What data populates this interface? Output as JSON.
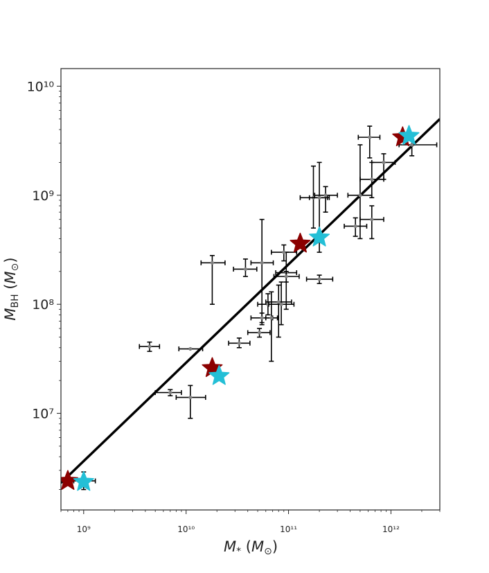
{
  "chart_data": {
    "type": "scatter",
    "title": "",
    "xlabel": "M_* (M_⊙)",
    "ylabel": "M_BH (M_⊙)",
    "x_scale": "log",
    "y_scale": "log",
    "xlim": [
      600000000.0,
      3000000000000.0
    ],
    "ylim": [
      1300000.0,
      14500000000.0
    ],
    "grid": false,
    "legend": "none",
    "x_ticks": [
      {
        "value": 1000000000.0,
        "label": "10⁹"
      },
      {
        "value": 10000000000.0,
        "label": "10¹⁰"
      },
      {
        "value": 100000000000.0,
        "label": "10¹¹"
      },
      {
        "value": 1000000000000.0,
        "label": "10¹²"
      }
    ],
    "y_ticks": [
      {
        "value": 10000000.0,
        "label": "10⁷"
      },
      {
        "value": 100000000.0,
        "label": "10⁸"
      },
      {
        "value": 1000000000.0,
        "label": "10⁹"
      },
      {
        "value": 10000000000.0,
        "label": "10¹⁰"
      }
    ],
    "fit_line": {
      "color": "#000000",
      "points": [
        [
          600000000.0,
          2300000.0
        ],
        [
          3000000000000.0,
          5000000000.0
        ]
      ]
    },
    "series": [
      {
        "marker": "errorbar-point",
        "color": "#808080",
        "errorbar_color": "#000000",
        "points": [
          {
            "x": 4400000000.0,
            "y": 41000000.0,
            "xerr": [
              3500000000.0,
              5500000000.0
            ],
            "yerr": [
              37000000.0,
              45000000.0
            ]
          },
          {
            "x": 11000000000.0,
            "y": 39000000.0,
            "xerr": [
              8500000000.0,
              14500000000.0
            ],
            "yerr": [
              39000000.0,
              39000000.0
            ]
          },
          {
            "x": 7000000000.0,
            "y": 15500000.0,
            "xerr": [
              5000000000.0,
              9000000000.0
            ],
            "yerr": [
              14500000.0,
              16500000.0
            ]
          },
          {
            "x": 11000000000.0,
            "y": 14000000.0,
            "xerr": [
              8000000000.0,
              15500000000.0
            ],
            "yerr": [
              9000000.0,
              18000000.0
            ]
          },
          {
            "x": 18000000000.0,
            "y": 240000000.0,
            "xerr": [
              14000000000.0,
              24000000000.0
            ],
            "yerr": [
              100000000.0,
              280000000.0
            ]
          },
          {
            "x": 38000000000.0,
            "y": 210000000.0,
            "xerr": [
              29000000000.0,
              49000000000.0
            ],
            "yerr": [
              180000000.0,
              260000000.0
            ]
          },
          {
            "x": 55000000000.0,
            "y": 240000000.0,
            "xerr": [
              43000000000.0,
              71000000000.0
            ],
            "yerr": [
              65000000.0,
              600000000.0
            ]
          },
          {
            "x": 33000000000.0,
            "y": 44000000.0,
            "xerr": [
              26000000000.0,
              42000000000.0
            ],
            "yerr": [
              40000000.0,
              49000000.0
            ]
          },
          {
            "x": 52000000000.0,
            "y": 55000000.0,
            "xerr": [
              40000000000.0,
              66000000000.0
            ],
            "yerr": [
              50000000.0,
              60000000.0
            ]
          },
          {
            "x": 55000000000.0,
            "y": 75000000.0,
            "xerr": [
              43000000000.0,
              70000000000.0
            ],
            "yerr": [
              68000000.0,
              83000000.0
            ]
          },
          {
            "x": 63000000000.0,
            "y": 100000000.0,
            "xerr": [
              50000000000.0,
              80000000000.0
            ],
            "yerr": [
              80000000.0,
              125000000.0
            ]
          },
          {
            "x": 68000000000.0,
            "y": 75000000.0,
            "xerr": [
              60000000000.0,
              78000000000.0
            ],
            "yerr": [
              30000000.0,
              130000000.0
            ]
          },
          {
            "x": 80000000000.0,
            "y": 105000000.0,
            "xerr": [
              60000000000.0,
              107000000000.0
            ],
            "yerr": [
              50000000.0,
              150000000.0
            ]
          },
          {
            "x": 85000000000.0,
            "y": 100000000.0,
            "xerr": [
              64000000000.0,
              113000000000.0
            ],
            "yerr": [
              65000000.0,
              160000000.0
            ]
          },
          {
            "x": 95000000000.0,
            "y": 195000000.0,
            "xerr": [
              75000000000.0,
              120000000000.0
            ],
            "yerr": [
              90000000.0,
              300000000.0
            ]
          },
          {
            "x": 90000000000.0,
            "y": 300000000.0,
            "xerr": [
              68000000000.0,
              120000000000.0
            ],
            "yerr": [
              250000000.0,
              350000000.0
            ]
          },
          {
            "x": 95000000000.0,
            "y": 180000000.0,
            "xerr": [
              72000000000.0,
              127000000000.0
            ],
            "yerr": [
              160000000.0,
              200000000.0
            ]
          },
          {
            "x": 200000000000.0,
            "y": 170000000.0,
            "xerr": [
              150000000000.0,
              270000000000.0
            ],
            "yerr": [
              155000000.0,
              185000000.0
            ]
          },
          {
            "x": 175000000000.0,
            "y": 950000000.0,
            "xerr": [
              130000000000.0,
              240000000000.0
            ],
            "yerr": [
              500000000.0,
              1850000000.0
            ]
          },
          {
            "x": 200000000000.0,
            "y": 950000000.0,
            "xerr": [
              160000000000.0,
              250000000000.0
            ],
            "yerr": [
              300000000.0,
              2000000000.0
            ]
          },
          {
            "x": 230000000000.0,
            "y": 1000000000.0,
            "xerr": [
              180000000000.0,
              300000000000.0
            ],
            "yerr": [
              700000000.0,
              1200000000.0
            ]
          },
          {
            "x": 450000000000.0,
            "y": 520000000.0,
            "xerr": [
              350000000000.0,
              580000000000.0
            ],
            "yerr": [
              420000000.0,
              620000000.0
            ]
          },
          {
            "x": 500000000000.0,
            "y": 1000000000.0,
            "xerr": [
              380000000000.0,
              650000000000.0
            ],
            "yerr": [
              400000000.0,
              2900000000.0
            ]
          },
          {
            "x": 650000000000.0,
            "y": 600000000.0,
            "xerr": [
              500000000000.0,
              850000000000.0
            ],
            "yerr": [
              400000000.0,
              800000000.0
            ]
          },
          {
            "x": 650000000000.0,
            "y": 1400000000.0,
            "xerr": [
              500000000000.0,
              850000000000.0
            ],
            "yerr": [
              950000000.0,
              2000000000.0
            ]
          },
          {
            "x": 850000000000.0,
            "y": 2000000000.0,
            "xerr": [
              650000000000.0,
              1100000000000.0
            ],
            "yerr": [
              1400000000.0,
              2400000000.0
            ]
          },
          {
            "x": 620000000000.0,
            "y": 3400000000.0,
            "xerr": [
              480000000000.0,
              780000000000.0
            ],
            "yerr": [
              2200000000.0,
              4300000000.0
            ]
          },
          {
            "x": 1600000000000.0,
            "y": 2900000000.0,
            "xerr": [
              1200000000000.0,
              2800000000000.0
            ],
            "yerr": [
              2300000000.0,
              3500000000.0
            ]
          },
          {
            "x": 1000000000.0,
            "y": 2400000.0,
            "xerr": [
              800000000.0,
              1300000000.0
            ],
            "yerr": [
              2000000.0,
              2900000.0
            ]
          }
        ]
      },
      {
        "marker": "star",
        "color": "#8b0000",
        "points": [
          {
            "x": 700000000.0,
            "y": 2400000.0
          },
          {
            "x": 18000000000.0,
            "y": 26000000.0
          },
          {
            "x": 130000000000.0,
            "y": 360000000.0
          },
          {
            "x": 1300000000000.0,
            "y": 3400000000.0
          }
        ]
      },
      {
        "marker": "star",
        "color": "#24bfd6",
        "points": [
          {
            "x": 1000000000.0,
            "y": 2350000.0
          },
          {
            "x": 21000000000.0,
            "y": 22000000.0
          },
          {
            "x": 200000000000.0,
            "y": 410000000.0
          },
          {
            "x": 1500000000000.0,
            "y": 3500000000.0
          }
        ]
      }
    ]
  }
}
